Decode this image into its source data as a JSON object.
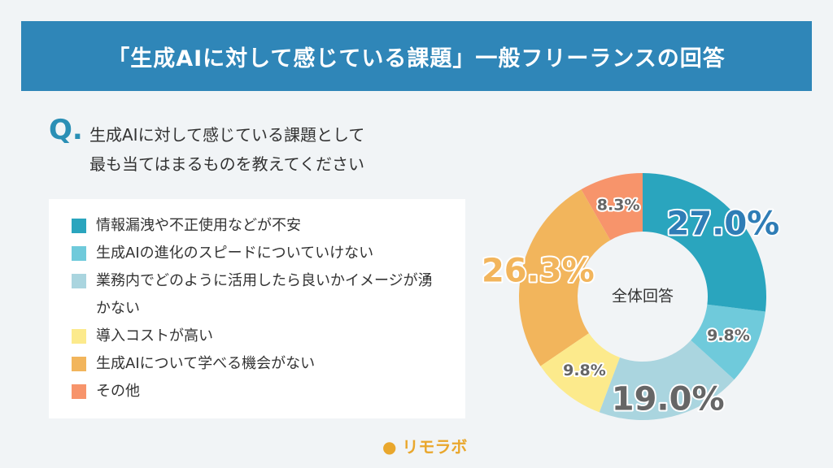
{
  "header": {
    "title": "「生成AIに対して感じている課題」一般フリーランスの回答"
  },
  "question": {
    "mark": "Q.",
    "lines": [
      "生成AIに対して感じている課題として",
      "最も当てはまるものを教えてください"
    ]
  },
  "chart_data": {
    "type": "donut",
    "center_label": "全体回答",
    "categories": [
      "情報漏洩や不正使用などが不安",
      "生成AIの進化のスピードについていけない",
      "業務内でどのように活用したら良いかイメージが湧かない",
      "導入コストが高い",
      "生成AIについて学べる機会がない",
      "その他"
    ],
    "values": [
      27.0,
      9.8,
      19.0,
      9.8,
      26.3,
      8.3
    ],
    "value_labels": [
      "27.0%",
      "9.8%",
      "19.0%",
      "9.8%",
      "26.3%",
      "8.3%"
    ],
    "colors": [
      "#2aa5be",
      "#6fcadb",
      "#aad5df",
      "#fcea8c",
      "#f2b55c",
      "#f7946b"
    ],
    "value_label_colors": [
      "#2f7db6",
      "#666666",
      "#666666",
      "#666666",
      "#f2b55c",
      "#666666"
    ]
  },
  "footer": {
    "logo": "リモラボ"
  }
}
